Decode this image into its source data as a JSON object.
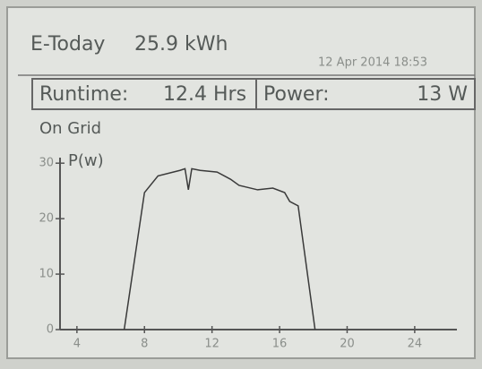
{
  "header": {
    "label": "E-Today",
    "energy": "25.9 kWh",
    "datetime": "12 Apr 2014 18:53",
    "runtime_label": "Runtime:",
    "runtime": "12.4 Hrs",
    "power_label": "Power:",
    "power": "13 W",
    "status": "On Grid"
  },
  "chart_data": {
    "type": "line",
    "y_label": "P(w)",
    "x": [
      6.8,
      8,
      8.8,
      10.1,
      10.4,
      10.6,
      10.8,
      11.3,
      12.3,
      13.1,
      13.6,
      14.7,
      15.6,
      16.3,
      16.6,
      17.1,
      18.1
    ],
    "values": [
      0,
      24.7,
      27.7,
      28.7,
      29,
      25.2,
      29,
      28.7,
      28.4,
      27.1,
      26,
      25.2,
      25.5,
      24.7,
      23.1,
      22.3,
      0
    ],
    "color": "#3a3a3a",
    "xlim": [
      3,
      26.5
    ],
    "xticks": [
      4,
      8,
      12,
      16,
      20,
      24
    ],
    "ylim": [
      0,
      31
    ],
    "yticks": [
      0,
      10,
      20,
      30
    ]
  }
}
